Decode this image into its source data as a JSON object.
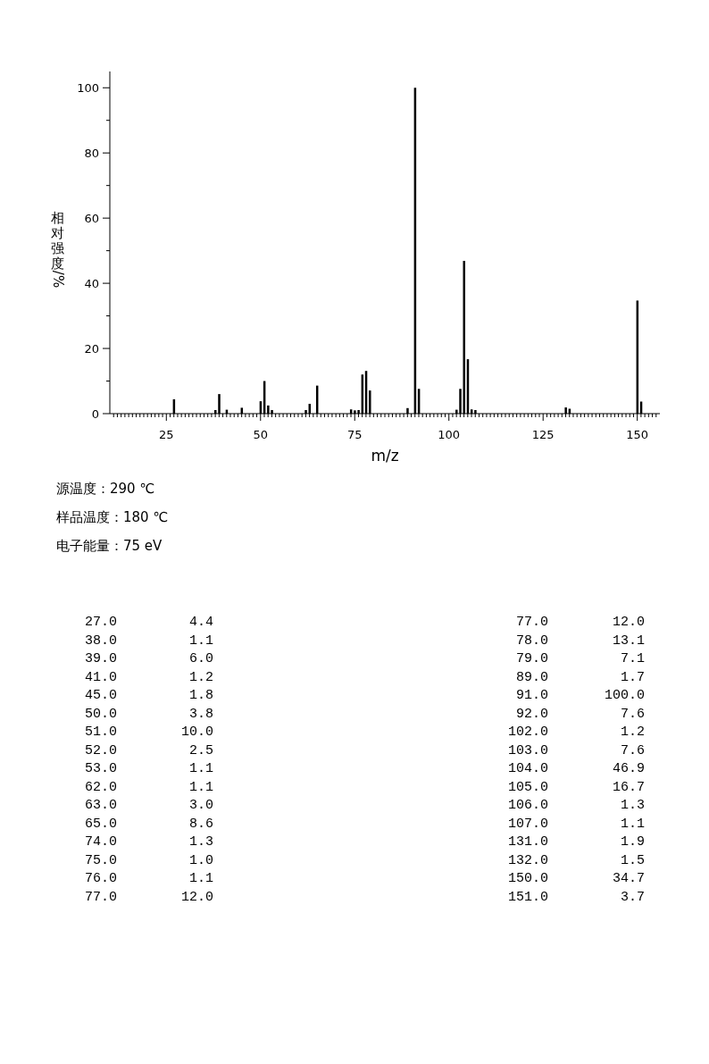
{
  "chart_data": {
    "type": "bar",
    "xlabel": "m/z",
    "ylabel": "相对强度/%",
    "color": "#000000",
    "x": [
      27,
      38,
      39,
      41,
      45,
      50,
      51,
      52,
      53,
      62,
      63,
      65,
      74,
      75,
      76,
      77,
      78,
      79,
      89,
      91,
      92,
      102,
      103,
      104,
      105,
      106,
      107,
      131,
      132,
      150,
      151
    ],
    "values": [
      4.4,
      1.1,
      6.0,
      1.2,
      1.8,
      3.8,
      10.0,
      2.5,
      1.1,
      1.1,
      3.0,
      8.6,
      1.3,
      1.0,
      1.1,
      12.0,
      13.1,
      7.1,
      1.7,
      100.0,
      7.6,
      1.2,
      7.6,
      46.9,
      16.7,
      1.3,
      1.1,
      1.9,
      1.5,
      34.7,
      3.7
    ],
    "xlim": [
      10,
      156
    ],
    "ylim": [
      0,
      105
    ],
    "yticks": [
      0,
      {
        "value": 10,
        "label": null
      },
      20,
      {
        "value": 30,
        "label": null
      },
      40,
      {
        "value": 50,
        "label": null
      },
      60,
      {
        "value": 70,
        "label": null
      },
      80,
      {
        "value": 90,
        "label": null
      },
      100
    ],
    "xticks": [
      {
        "value": 11,
        "label": null
      },
      {
        "value": 12,
        "label": null
      },
      {
        "value": 13,
        "label": null
      },
      {
        "value": 14,
        "label": null
      },
      {
        "value": 15,
        "label": null
      },
      {
        "value": 16,
        "label": null
      },
      {
        "value": 17,
        "label": null
      },
      {
        "value": 18,
        "label": null
      },
      {
        "value": 19,
        "label": null
      },
      {
        "value": 20,
        "label": null
      },
      {
        "value": 21,
        "label": null
      },
      {
        "value": 22,
        "label": null
      },
      {
        "value": 23,
        "label": null
      },
      {
        "value": 24,
        "label": null
      },
      25,
      {
        "value": 26,
        "label": null
      },
      {
        "value": 27,
        "label": null
      },
      {
        "value": 28,
        "label": null
      },
      {
        "value": 29,
        "label": null
      },
      {
        "value": 30,
        "label": null
      },
      {
        "value": 31,
        "label": null
      },
      {
        "value": 32,
        "label": null
      },
      {
        "value": 33,
        "label": null
      },
      {
        "value": 34,
        "label": null
      },
      {
        "value": 35,
        "label": null
      },
      {
        "value": 36,
        "label": null
      },
      {
        "value": 37,
        "label": null
      },
      {
        "value": 38,
        "label": null
      },
      {
        "value": 39,
        "label": null
      },
      {
        "value": 40,
        "label": null
      },
      {
        "value": 41,
        "label": null
      },
      {
        "value": 42,
        "label": null
      },
      {
        "value": 43,
        "label": null
      },
      {
        "value": 44,
        "label": null
      },
      {
        "value": 45,
        "label": null
      },
      {
        "value": 46,
        "label": null
      },
      {
        "value": 47,
        "label": null
      },
      {
        "value": 48,
        "label": null
      },
      {
        "value": 49,
        "label": null
      },
      50,
      {
        "value": 51,
        "label": null
      },
      {
        "value": 52,
        "label": null
      },
      {
        "value": 53,
        "label": null
      },
      {
        "value": 54,
        "label": null
      },
      {
        "value": 55,
        "label": null
      },
      {
        "value": 56,
        "label": null
      },
      {
        "value": 57,
        "label": null
      },
      {
        "value": 58,
        "label": null
      },
      {
        "value": 59,
        "label": null
      },
      {
        "value": 60,
        "label": null
      },
      {
        "value": 61,
        "label": null
      },
      {
        "value": 62,
        "label": null
      },
      {
        "value": 63,
        "label": null
      },
      {
        "value": 64,
        "label": null
      },
      {
        "value": 65,
        "label": null
      },
      {
        "value": 66,
        "label": null
      },
      {
        "value": 67,
        "label": null
      },
      {
        "value": 68,
        "label": null
      },
      {
        "value": 69,
        "label": null
      },
      {
        "value": 70,
        "label": null
      },
      {
        "value": 71,
        "label": null
      },
      {
        "value": 72,
        "label": null
      },
      {
        "value": 73,
        "label": null
      },
      {
        "value": 74,
        "label": null
      },
      75,
      {
        "value": 76,
        "label": null
      },
      {
        "value": 77,
        "label": null
      },
      {
        "value": 78,
        "label": null
      },
      {
        "value": 79,
        "label": null
      },
      {
        "value": 80,
        "label": null
      },
      {
        "value": 81,
        "label": null
      },
      {
        "value": 82,
        "label": null
      },
      {
        "value": 83,
        "label": null
      },
      {
        "value": 84,
        "label": null
      },
      {
        "value": 85,
        "label": null
      },
      {
        "value": 86,
        "label": null
      },
      {
        "value": 87,
        "label": null
      },
      {
        "value": 88,
        "label": null
      },
      {
        "value": 89,
        "label": null
      },
      {
        "value": 90,
        "label": null
      },
      {
        "value": 91,
        "label": null
      },
      {
        "value": 92,
        "label": null
      },
      {
        "value": 93,
        "label": null
      },
      {
        "value": 94,
        "label": null
      },
      {
        "value": 95,
        "label": null
      },
      {
        "value": 96,
        "label": null
      },
      {
        "value": 97,
        "label": null
      },
      {
        "value": 98,
        "label": null
      },
      {
        "value": 99,
        "label": null
      },
      100,
      {
        "value": 101,
        "label": null
      },
      {
        "value": 102,
        "label": null
      },
      {
        "value": 103,
        "label": null
      },
      {
        "value": 104,
        "label": null
      },
      {
        "value": 105,
        "label": null
      },
      {
        "value": 106,
        "label": null
      },
      {
        "value": 107,
        "label": null
      },
      {
        "value": 108,
        "label": null
      },
      {
        "value": 109,
        "label": null
      },
      {
        "value": 110,
        "label": null
      },
      {
        "value": 111,
        "label": null
      },
      {
        "value": 112,
        "label": null
      },
      {
        "value": 113,
        "label": null
      },
      {
        "value": 114,
        "label": null
      },
      {
        "value": 115,
        "label": null
      },
      {
        "value": 116,
        "label": null
      },
      {
        "value": 117,
        "label": null
      },
      {
        "value": 118,
        "label": null
      },
      {
        "value": 119,
        "label": null
      },
      {
        "value": 120,
        "label": null
      },
      {
        "value": 121,
        "label": null
      },
      {
        "value": 122,
        "label": null
      },
      {
        "value": 123,
        "label": null
      },
      {
        "value": 124,
        "label": null
      },
      125,
      {
        "value": 126,
        "label": null
      },
      {
        "value": 127,
        "label": null
      },
      {
        "value": 128,
        "label": null
      },
      {
        "value": 129,
        "label": null
      },
      {
        "value": 130,
        "label": null
      },
      {
        "value": 131,
        "label": null
      },
      {
        "value": 132,
        "label": null
      },
      {
        "value": 133,
        "label": null
      },
      {
        "value": 134,
        "label": null
      },
      {
        "value": 135,
        "label": null
      },
      {
        "value": 136,
        "label": null
      },
      {
        "value": 137,
        "label": null
      },
      {
        "value": 138,
        "label": null
      },
      {
        "value": 139,
        "label": null
      },
      {
        "value": 140,
        "label": null
      },
      {
        "value": 141,
        "label": null
      },
      {
        "value": 142,
        "label": null
      },
      {
        "value": 143,
        "label": null
      },
      {
        "value": 144,
        "label": null
      },
      {
        "value": 145,
        "label": null
      },
      {
        "value": 146,
        "label": null
      },
      {
        "value": 147,
        "label": null
      },
      {
        "value": 148,
        "label": null
      },
      {
        "value": 149,
        "label": null
      },
      150,
      {
        "value": 151,
        "label": null
      },
      {
        "value": 152,
        "label": null
      },
      {
        "value": 153,
        "label": null
      },
      {
        "value": 154,
        "label": null
      },
      {
        "value": 155,
        "label": null
      }
    ],
    "annotations": [
      "源温度：290 ℃",
      "样品温度：180 ℃",
      "电子能量：75 eV",
      "27.0",
      "4.4",
      "77.0",
      "12.0",
      "38.0",
      "1.1",
      "78.0",
      "13.1",
      "39.0",
      "6.0",
      "79.0",
      "7.1",
      "41.0",
      "1.2",
      "89.0",
      "1.7",
      "45.0",
      "1.8",
      "91.0",
      "100.0",
      "50.0",
      "3.8",
      "92.0",
      "7.6",
      "51.0",
      "10.0",
      "102.0",
      "1.2",
      "52.0",
      "2.5",
      "103.0",
      "7.6",
      "53.0",
      "1.1",
      "104.0",
      "46.9",
      "62.0",
      "1.1",
      "105.0",
      "16.7",
      "63.0",
      "3.0",
      "106.0",
      "1.3",
      "65.0",
      "8.6",
      "107.0",
      "1.1",
      "74.0",
      "1.3",
      "131.0",
      "1.9",
      "75.0",
      "1.0",
      "132.0",
      "1.5",
      "76.0",
      "1.1",
      "150.0",
      "34.7",
      "77.0",
      "12.0",
      "151.0",
      "3.7"
    ]
  }
}
